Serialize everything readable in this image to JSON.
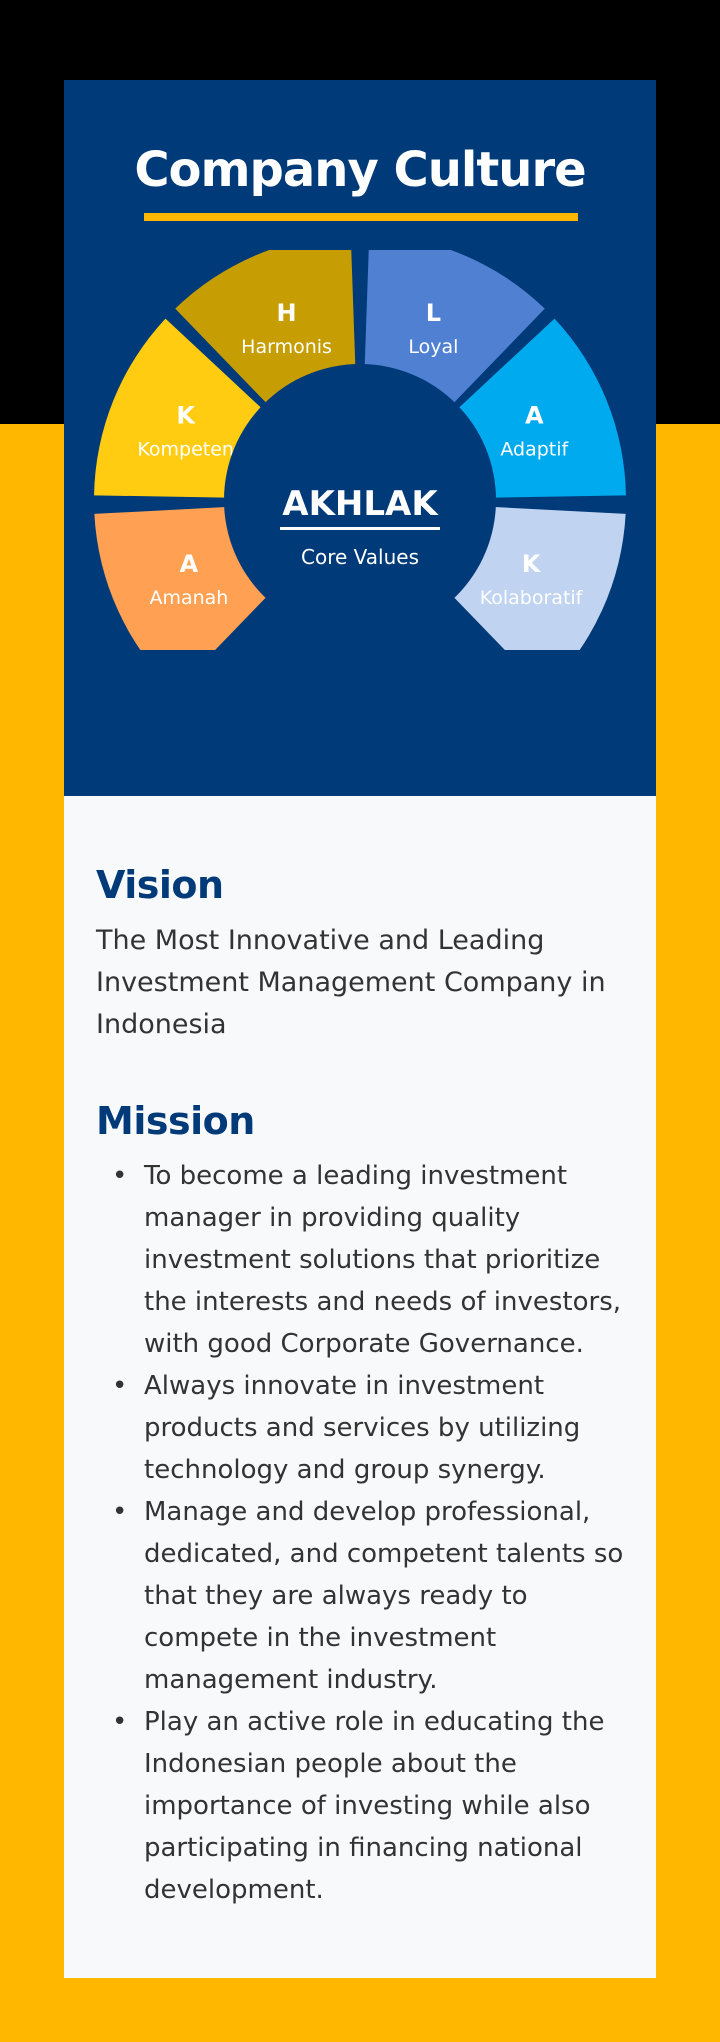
{
  "header": {
    "title": "Company Culture"
  },
  "core_values": {
    "name": "AKHLAK",
    "subtitle": "Core Values",
    "segments": [
      {
        "letter": "A",
        "label": "Amanah",
        "color": "#FFA052"
      },
      {
        "letter": "K",
        "label": "Kompeten",
        "color": "#FFCC12"
      },
      {
        "letter": "H",
        "label": "Harmonis",
        "color": "#C69D02"
      },
      {
        "letter": "L",
        "label": "Loyal",
        "color": "#4F80D2"
      },
      {
        "letter": "A",
        "label": "Adaptif",
        "color": "#00AAEE"
      },
      {
        "letter": "K",
        "label": "Kolaboratif",
        "color": "#C0D3F0"
      }
    ]
  },
  "vision": {
    "heading": "Vision",
    "text": "The Most Innovative and Leading Investment Management Company in Indonesia"
  },
  "mission": {
    "heading": "Mission",
    "items": [
      "To become a leading investment manager in providing quality investment solutions that prioritize the interests and needs of investors, with good Corporate Governance.",
      "Always innovate in investment products and services by utilizing technology and group synergy.",
      "Manage and develop professional, dedicated, and competent talents so that they are always ready to compete in the investment management industry.",
      "Play an active role in educating the Indonesian people about the importance of investing while also participating in financing national development."
    ],
    "bullet": "•"
  },
  "colors": {
    "navy": "#003A78",
    "gold": "#FFB700",
    "text": "#333333"
  }
}
